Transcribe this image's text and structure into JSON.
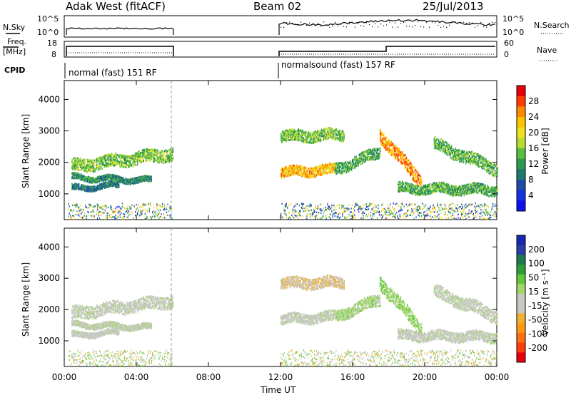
{
  "header": {
    "station": "Adak West (fitACF)",
    "beam": "Beam 02",
    "date": "25/Jul/2013"
  },
  "status_panels": {
    "nsky_label": "N.Sky",
    "nsearch_label": "N.Search",
    "freq_label_1": "Freq.",
    "freq_label_2": "[MHz]",
    "nave_label": "Nave",
    "cpid_label": "CPID",
    "noise_ticks": [
      "10^5",
      "10^0"
    ],
    "freq_ticks": [
      "18",
      "8"
    ],
    "nave_ticks": [
      "60",
      "0"
    ],
    "cpid_segments": [
      {
        "label": "normal (fast) 151 RF",
        "start_hour": 0,
        "end_hour": 6
      },
      {
        "label": "normalsound (fast) 157 RF",
        "start_hour": 12,
        "end_hour": 24
      }
    ]
  },
  "colorbars": {
    "power": {
      "label": "Power [dB]",
      "ticks": [
        "28",
        "24",
        "20",
        "16",
        "12",
        "8",
        "4"
      ],
      "colors": [
        "#e8000b",
        "#ff3b00",
        "#ff8a00",
        "#ffc400",
        "#f0e020",
        "#b8dc2c",
        "#58c040",
        "#2e9a4e",
        "#1f7a6e",
        "#1e4ca8",
        "#1432e0",
        "#1010f0"
      ]
    },
    "velocity": {
      "label": "Velocity [m s⁻¹]",
      "ticks": [
        "200",
        "100",
        "50",
        "15",
        "-15",
        "-50",
        "-100",
        "-200"
      ],
      "colors": [
        "#1428b4",
        "#2a3ca6",
        "#1e7a4e",
        "#2e9e3a",
        "#63c83b",
        "#a4d86c",
        "#c8c8c4",
        "#c8c8c4",
        "#f0b030",
        "#ff9a10",
        "#ff7010",
        "#ff3c0c",
        "#e8000b"
      ]
    }
  },
  "axes": {
    "ylabel": "Slant Range [km]",
    "xlabel": "Time UT",
    "x_ticks": [
      "00:00",
      "04:00",
      "08:00",
      "12:00",
      "16:00",
      "20:00",
      "00:00"
    ]
  },
  "chart_data": [
    {
      "type": "heatmap",
      "name": "Power",
      "ylabel": "Slant Range [km]",
      "y_ticks": [
        1000,
        2000,
        3000,
        4000
      ],
      "ylim": [
        180,
        4600
      ],
      "xlim": [
        0,
        24
      ],
      "gaps_hours": [
        [
          6,
          12
        ]
      ],
      "bands": [
        {
          "start": 0.4,
          "end": 6.0,
          "r0": 1900,
          "r1": 2300,
          "width": 200,
          "value_db": 14
        },
        {
          "start": 0.4,
          "end": 4.8,
          "r0": 1550,
          "r1": 1450,
          "width": 90,
          "value_db": 10
        },
        {
          "start": 0.4,
          "end": 3.0,
          "r0": 1200,
          "r1": 1300,
          "width": 90,
          "value_db": 8
        },
        {
          "start": 12.0,
          "end": 15.0,
          "r0": 1700,
          "r1": 1800,
          "width": 160,
          "value_db": 22
        },
        {
          "start": 15.0,
          "end": 17.5,
          "r0": 1800,
          "r1": 2350,
          "width": 180,
          "value_db": 12
        },
        {
          "start": 17.5,
          "end": 19.8,
          "r0": 2900,
          "r1": 1400,
          "width": 220,
          "value_db": 24
        },
        {
          "start": 12.0,
          "end": 15.5,
          "r0": 2850,
          "r1": 2900,
          "width": 180,
          "value_db": 14
        },
        {
          "start": 20.5,
          "end": 24.0,
          "r0": 2600,
          "r1": 1800,
          "width": 200,
          "value_db": 13
        },
        {
          "start": 18.5,
          "end": 24.0,
          "r0": 1200,
          "r1": 1150,
          "width": 160,
          "value_db": 12
        }
      ]
    },
    {
      "type": "heatmap",
      "name": "Velocity",
      "ylabel": "Slant Range [km]",
      "y_ticks": [
        1000,
        2000,
        3000,
        4000
      ],
      "ylim": [
        180,
        4600
      ],
      "xlim": [
        0,
        24
      ],
      "gaps_hours": [
        [
          6,
          12
        ]
      ],
      "bands": [
        {
          "start": 0.4,
          "end": 6.0,
          "r0": 1900,
          "r1": 2300,
          "width": 200,
          "value_ms": 0
        },
        {
          "start": 0.4,
          "end": 4.8,
          "r0": 1550,
          "r1": 1450,
          "width": 90,
          "value_ms": 5
        },
        {
          "start": 0.4,
          "end": 3.0,
          "r0": 1200,
          "r1": 1300,
          "width": 90,
          "value_ms": -5
        },
        {
          "start": 12.0,
          "end": 15.0,
          "r0": 1700,
          "r1": 1800,
          "width": 160,
          "value_ms": 0
        },
        {
          "start": 15.0,
          "end": 17.5,
          "r0": 1800,
          "r1": 2350,
          "width": 180,
          "value_ms": 30
        },
        {
          "start": 17.5,
          "end": 19.8,
          "r0": 2900,
          "r1": 1400,
          "width": 220,
          "value_ms": 40
        },
        {
          "start": 12.0,
          "end": 15.5,
          "r0": 2850,
          "r1": 2900,
          "width": 180,
          "value_ms": -40
        },
        {
          "start": 20.5,
          "end": 24.0,
          "r0": 2600,
          "r1": 1800,
          "width": 200,
          "value_ms": 0
        },
        {
          "start": 18.5,
          "end": 24.0,
          "r0": 1200,
          "r1": 1150,
          "width": 160,
          "value_ms": 0
        }
      ]
    }
  ]
}
